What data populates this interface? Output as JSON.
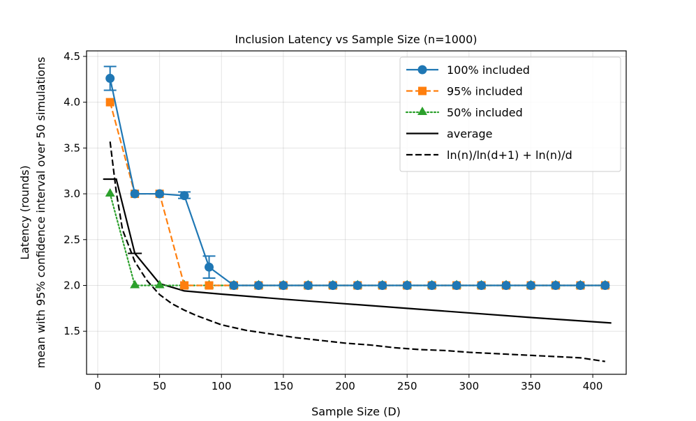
{
  "chart_data": {
    "type": "line",
    "title": "Inclusion Latency vs Sample Size (n=1000)",
    "xlabel": "Sample Size (D)",
    "ylabel_line1": "Latency (rounds)",
    "ylabel_line2": "mean with 95% confidence interval over 50 simulations",
    "xlim": [
      -9,
      427
    ],
    "ylim": [
      1.03,
      4.56
    ],
    "x_ticks": [
      0,
      50,
      100,
      150,
      200,
      250,
      300,
      350,
      400
    ],
    "y_ticks": [
      1.5,
      2.0,
      2.5,
      3.0,
      3.5,
      4.0,
      4.5
    ],
    "x_tick_labels": [
      "0",
      "50",
      "100",
      "150",
      "200",
      "250",
      "300",
      "350",
      "400"
    ],
    "y_tick_labels": [
      "1.5",
      "2.0",
      "2.5",
      "3.0",
      "3.5",
      "4.0",
      "4.5"
    ],
    "grid": true,
    "legend_position": "top-right",
    "x": [
      10,
      30,
      50,
      70,
      90,
      110,
      130,
      150,
      170,
      190,
      210,
      230,
      250,
      270,
      290,
      310,
      330,
      350,
      370,
      390,
      410
    ],
    "series": [
      {
        "name": "100% included",
        "color": "#1f77b4",
        "marker": "circle",
        "dash": "solid",
        "values": [
          4.26,
          3.0,
          3.0,
          2.98,
          2.2,
          2.0,
          2.0,
          2.0,
          2.0,
          2.0,
          2.0,
          2.0,
          2.0,
          2.0,
          2.0,
          2.0,
          2.0,
          2.0,
          2.0,
          2.0,
          2.0
        ],
        "error_bars": [
          {
            "x": 10,
            "low": 4.13,
            "high": 4.39
          },
          {
            "x": 70,
            "low": 2.95,
            "high": 3.02
          },
          {
            "x": 90,
            "low": 2.08,
            "high": 2.32
          }
        ]
      },
      {
        "name": "95% included",
        "color": "#ff7f0e",
        "marker": "square",
        "dash": "dashed",
        "values": [
          4.0,
          3.0,
          3.0,
          2.0,
          2.0,
          2.0,
          2.0,
          2.0,
          2.0,
          2.0,
          2.0,
          2.0,
          2.0,
          2.0,
          2.0,
          2.0,
          2.0,
          2.0,
          2.0,
          2.0,
          2.0
        ]
      },
      {
        "name": "50% included",
        "color": "#2ca02c",
        "marker": "triangle",
        "dash": "dotted",
        "values": [
          3.0,
          2.0,
          2.0,
          2.0,
          2.0,
          2.0,
          2.0,
          2.0,
          2.0,
          2.0,
          2.0,
          2.0,
          2.0,
          2.0,
          2.0,
          2.0,
          2.0,
          2.0,
          2.0,
          2.0,
          2.0
        ]
      },
      {
        "name": "average",
        "color": "#000000",
        "dash": "solid",
        "points": [
          [
            5,
            3.16
          ],
          [
            15,
            3.16
          ],
          [
            30,
            2.35
          ],
          [
            50,
            2.02
          ],
          [
            70,
            1.94
          ],
          [
            100,
            1.905
          ],
          [
            150,
            1.85
          ],
          [
            200,
            1.8
          ],
          [
            250,
            1.75
          ],
          [
            300,
            1.7
          ],
          [
            350,
            1.65
          ],
          [
            415,
            1.59
          ]
        ],
        "caps": [
          {
            "x": 10,
            "y": 3.16
          },
          {
            "x": 30,
            "y": 2.35
          }
        ]
      },
      {
        "name": "ln(n)/ln(d+1) + ln(n)/d",
        "color": "#000000",
        "dash": "dashed",
        "points": [
          [
            10,
            3.57
          ],
          [
            15,
            3.02
          ],
          [
            20,
            2.61
          ],
          [
            30,
            2.26
          ],
          [
            40,
            2.05
          ],
          [
            50,
            1.9
          ],
          [
            60,
            1.8
          ],
          [
            70,
            1.73
          ],
          [
            80,
            1.67
          ],
          [
            90,
            1.62
          ],
          [
            100,
            1.57
          ],
          [
            120,
            1.51
          ],
          [
            140,
            1.47
          ],
          [
            160,
            1.43
          ],
          [
            180,
            1.4
          ],
          [
            200,
            1.37
          ],
          [
            220,
            1.35
          ],
          [
            240,
            1.32
          ],
          [
            260,
            1.3
          ],
          [
            280,
            1.29
          ],
          [
            300,
            1.27
          ],
          [
            330,
            1.25
          ],
          [
            360,
            1.23
          ],
          [
            390,
            1.21
          ],
          [
            410,
            1.17
          ]
        ]
      }
    ]
  }
}
